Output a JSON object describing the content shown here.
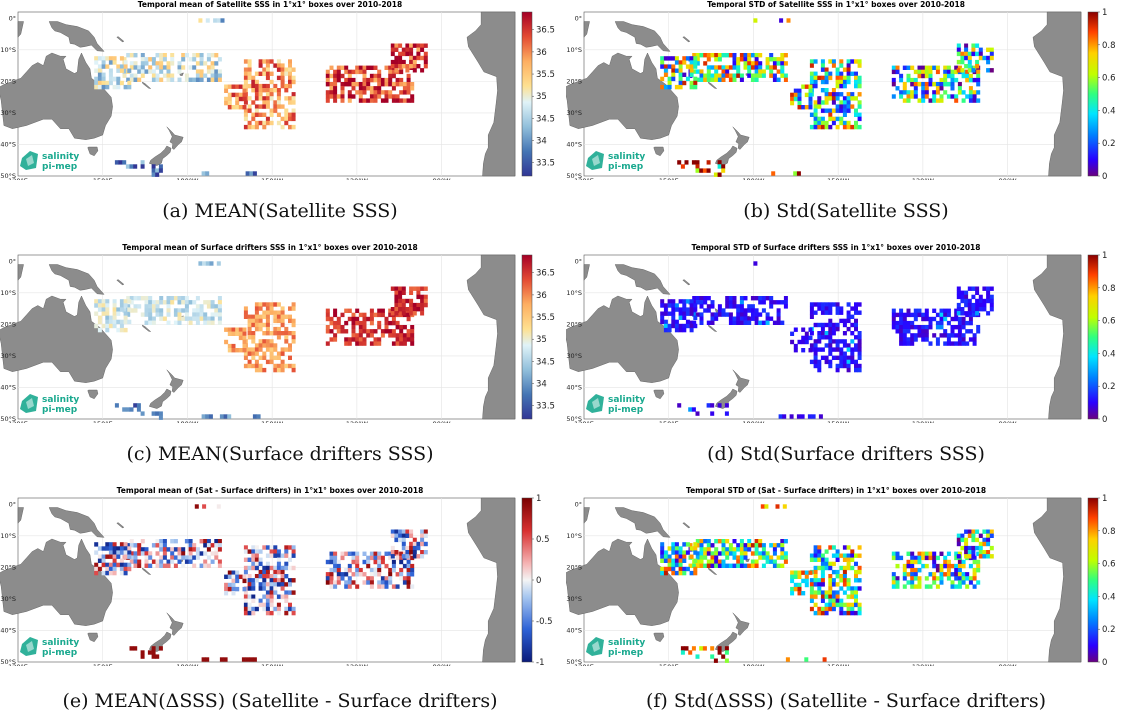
{
  "panels": [
    {
      "title": "Temporal mean of Satellite SSS in 1°x1° boxes over 2010-2018",
      "caption": "(a) MEAN(Satellite SSS)",
      "cmap": "rdylbu",
      "cbar_ticks": [
        "36.5",
        "36",
        "35.5",
        "35",
        "34.5",
        "34",
        "33.5"
      ],
      "cbar_range": [
        33.2,
        36.9
      ]
    },
    {
      "title": "Temporal STD of Satellite SSS in 1°x1° boxes over 2010-2018",
      "caption": "(b) Std(Satellite SSS)",
      "cmap": "jet",
      "cbar_ticks": [
        "1",
        "0.8",
        "0.6",
        "0.4",
        "0.2",
        "0"
      ],
      "cbar_range": [
        0,
        1
      ]
    },
    {
      "title": "Temporal mean of Surface drifters SSS in 1°x1° boxes over 2010-2018",
      "caption": "(c) MEAN(Surface drifters SSS)",
      "cmap": "rdylbu",
      "cbar_ticks": [
        "36.5",
        "36",
        "35.5",
        "35",
        "34.5",
        "34",
        "33.5"
      ],
      "cbar_range": [
        33.2,
        36.9
      ]
    },
    {
      "title": "Temporal STD of Surface drifters SSS in 1°x1° boxes over 2010-2018",
      "caption": "(d) Std(Surface drifters SSS)",
      "cmap": "jet",
      "cbar_ticks": [
        "1",
        "0.8",
        "0.6",
        "0.4",
        "0.2",
        "0"
      ],
      "cbar_range": [
        0,
        1
      ]
    },
    {
      "title": "Temporal mean of (Sat - Surface drifters) in 1°x1° boxes over 2010-2018",
      "caption": "(e) MEAN(ΔSSS) (Satellite - Surface drifters)",
      "cmap": "rdbu",
      "cbar_ticks": [
        "1",
        "0.5",
        "0",
        "-0.5",
        "-1"
      ],
      "cbar_range": [
        -1,
        1
      ]
    },
    {
      "title": "Temporal STD of (Sat - Surface drifters) in 1°x1° boxes over 2010-2018",
      "caption": "(f) Std(ΔSSS) (Satellite - Surface drifters)",
      "cmap": "jet",
      "cbar_ticks": [
        "1",
        "0.8",
        "0.6",
        "0.4",
        "0.2",
        "0"
      ],
      "cbar_range": [
        0,
        1
      ]
    }
  ],
  "axes": {
    "lon_labels": [
      "120°E",
      "150°E",
      "180°W",
      "150°W",
      "120°W",
      "90°W"
    ],
    "lat_labels": [
      "0°",
      "10°S",
      "20°S",
      "30°S",
      "40°S",
      "50°S"
    ]
  },
  "logo": {
    "line1": "salinity",
    "line2": "pi-mep"
  },
  "colors": {
    "land": "#8c8c8c",
    "grid": "#e4e4e4",
    "logo": "#1aa98f"
  }
}
